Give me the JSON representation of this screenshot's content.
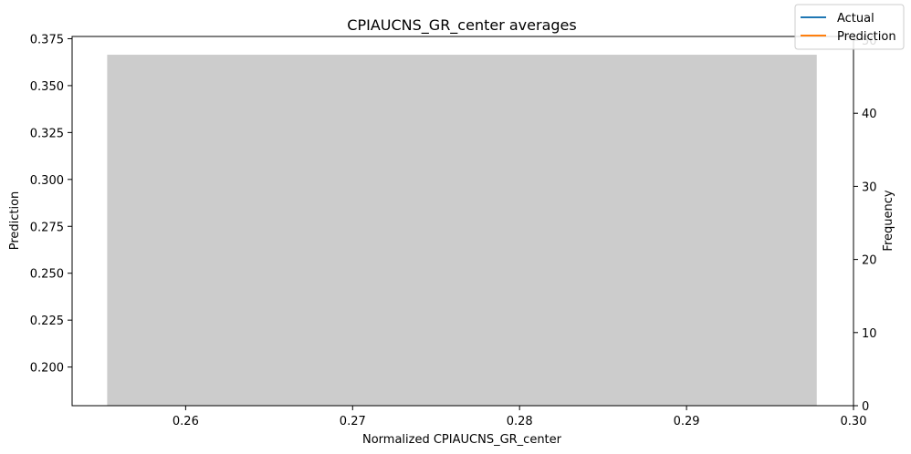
{
  "chart_data": {
    "type": "bar",
    "title": "CPIAUCNS_GR_center averages",
    "xlabel": "Normalized CPIAUCNS_GR_center",
    "ylabel_left": "Prediction",
    "ylabel_right": "Frequency",
    "x_ticks": [
      "0.26",
      "0.27",
      "0.28",
      "0.29",
      "0.30"
    ],
    "x_tick_values": [
      0.26,
      0.27,
      0.28,
      0.29,
      0.3
    ],
    "xlim": [
      0.2532,
      0.3
    ],
    "y_left_ticks": [
      "0.200",
      "0.225",
      "0.250",
      "0.275",
      "0.300",
      "0.325",
      "0.350",
      "0.375"
    ],
    "y_left_tick_values": [
      0.2,
      0.225,
      0.25,
      0.275,
      0.3,
      0.325,
      0.35,
      0.375
    ],
    "ylim_left": [
      0.1794,
      0.3762
    ],
    "y_right_ticks": [
      "0",
      "10",
      "20",
      "30",
      "40",
      "50"
    ],
    "y_right_tick_values": [
      0,
      10,
      20,
      30,
      40,
      50
    ],
    "ylim_right": [
      0,
      50.5
    ],
    "histogram": {
      "bins": [
        {
          "x_start": 0.2553,
          "x_end": 0.2978,
          "count": 48
        }
      ],
      "color": "#cccccc"
    },
    "series": [
      {
        "name": "Actual",
        "color": "#1f77b4",
        "x": [],
        "y": []
      },
      {
        "name": "Prediction",
        "color": "#ff7f0e",
        "x": [],
        "y": []
      }
    ],
    "legend_position": "top-right",
    "grid": false
  }
}
